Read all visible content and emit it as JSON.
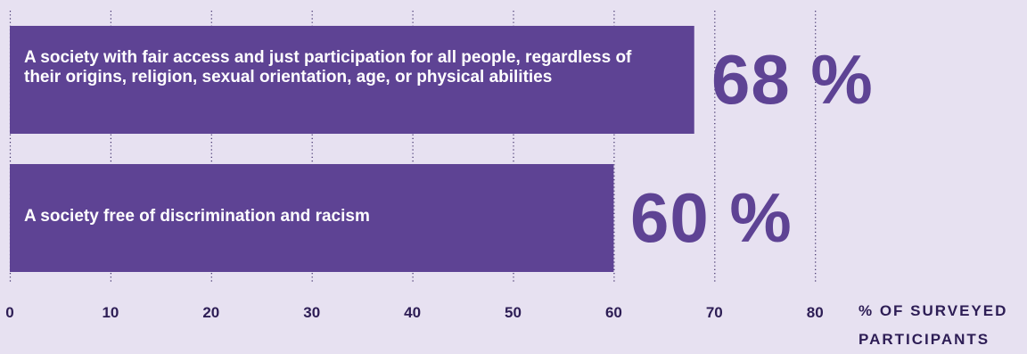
{
  "chart_data": {
    "type": "bar",
    "orientation": "horizontal",
    "categories": [
      "A society with fair access and just participation for all people, regardless of their origins, religion, sexual orientation, age, or physical abilities",
      "A society free of discrimination and racism"
    ],
    "values": [
      68,
      60
    ],
    "value_labels": [
      "68 %",
      "60 %"
    ],
    "x_ticks": [
      "0",
      "10",
      "20",
      "30",
      "40",
      "50",
      "60",
      "70",
      "80"
    ],
    "xlim": [
      0,
      80
    ],
    "xlabel": "% OF SURVEYED PARTICIPANTS",
    "grid": "dotted vertical",
    "colors": {
      "bar": "#5e4394",
      "background": "#e7e1f1",
      "value_text": "#5e4394",
      "axis_text": "#2d1d55"
    }
  }
}
